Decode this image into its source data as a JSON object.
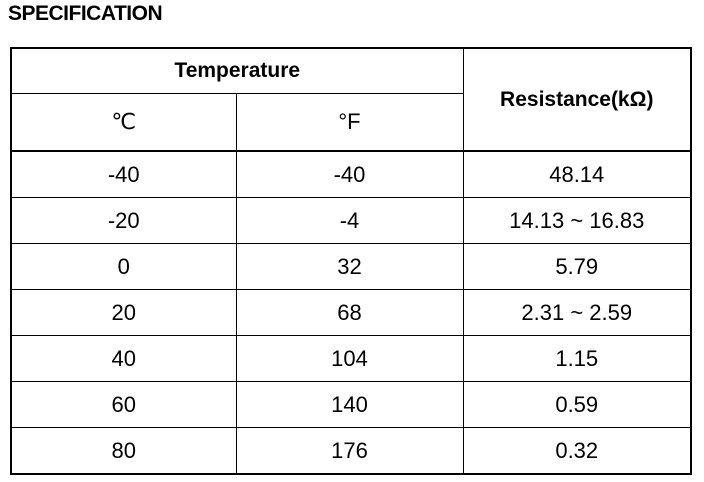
{
  "header": {
    "title": "SPECIFICATION"
  },
  "table": {
    "group_header": "Temperature",
    "columns": [
      "℃",
      "°F",
      "Resistance(kΩ)"
    ],
    "rows": [
      [
        "-40",
        "-40",
        "48.14"
      ],
      [
        "-20",
        "-4",
        "14.13 ~ 16.83"
      ],
      [
        "0",
        "32",
        "5.79"
      ],
      [
        "20",
        "68",
        "2.31 ~ 2.59"
      ],
      [
        "40",
        "104",
        "1.15"
      ],
      [
        "60",
        "140",
        "0.59"
      ],
      [
        "80",
        "176",
        "0.32"
      ]
    ]
  }
}
